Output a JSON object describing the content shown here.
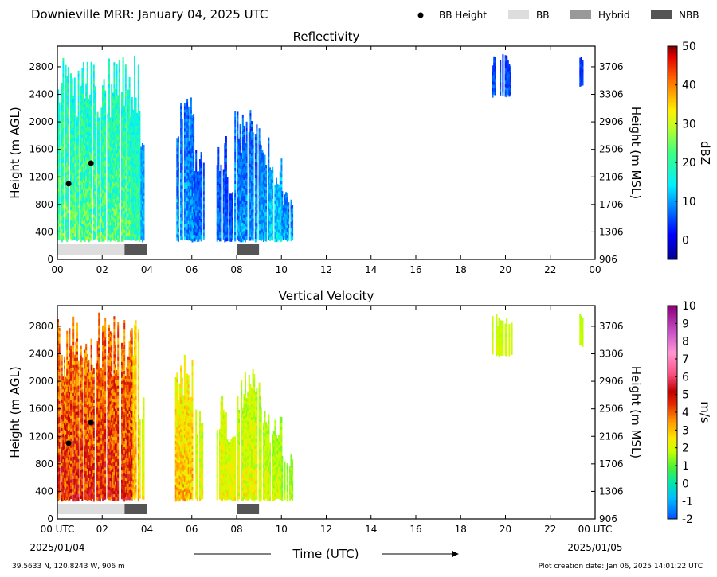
{
  "header": {
    "title": "Downieville MRR:  January 04, 2025 UTC",
    "legend": [
      {
        "label": "BB Height",
        "kind": "dot",
        "color": "#000000"
      },
      {
        "label": "BB",
        "kind": "swatch",
        "color": "#dddddd"
      },
      {
        "label": "Hybrid",
        "kind": "swatch",
        "color": "#999999"
      },
      {
        "label": "NBB",
        "kind": "swatch",
        "color": "#555555"
      }
    ]
  },
  "footer": {
    "location": "39.5633 N, 120.8243 W, 906 m",
    "creation": "Plot creation date: Jan 06, 2025 14:01:22 UTC",
    "time_label": "Time (UTC)",
    "start_date": "2025/01/04",
    "end_date": "2025/01/05"
  },
  "chart_data": [
    {
      "type": "heatmap",
      "title": "Reflectivity",
      "xlabel": "",
      "ylabel": "Height (m AGL)",
      "ylabel_right": "Height (m MSL)",
      "xlim": [
        0,
        24
      ],
      "ylim": [
        0,
        3100
      ],
      "x_ticks": [
        "00",
        "02",
        "04",
        "06",
        "08",
        "10",
        "12",
        "14",
        "16",
        "18",
        "20",
        "22",
        "00"
      ],
      "y_ticks": [
        0,
        400,
        800,
        1200,
        1600,
        2000,
        2400,
        2800
      ],
      "y_ticks_right": [
        "906",
        "1306",
        "1706",
        "2106",
        "2506",
        "2906",
        "3306",
        "3706"
      ],
      "colorbar": {
        "label": "dBZ",
        "min": -5,
        "max": 50,
        "ticks": [
          "0",
          "10",
          "20",
          "30",
          "40",
          "50"
        ],
        "tick_values": [
          0,
          10,
          20,
          30,
          40,
          50
        ],
        "scheme": "jet"
      },
      "bb_height_points": [
        {
          "x": 0.5,
          "y": 1100
        },
        {
          "x": 1.5,
          "y": 1400
        }
      ],
      "bb_type_segments": [
        {
          "type": "BB",
          "start": 0.0,
          "end": 3.0
        },
        {
          "type": "NBB",
          "start": 3.0,
          "end": 4.0
        },
        {
          "type": "NBB",
          "start": 8.0,
          "end": 9.0
        }
      ],
      "echo_regions": [
        {
          "start": 0.0,
          "end": 3.3,
          "top": 3000,
          "value_min": 8,
          "value_max": 30
        },
        {
          "start": 3.3,
          "end": 3.65,
          "top": 3000,
          "value_min": 10,
          "value_max": 25
        },
        {
          "start": 3.65,
          "end": 3.85,
          "top": 1800,
          "value_min": 5,
          "value_max": 15
        },
        {
          "start": 5.25,
          "end": 6.1,
          "top": 2400,
          "value_min": 0,
          "value_max": 15
        },
        {
          "start": 6.1,
          "end": 6.5,
          "top": 1600,
          "value_min": 0,
          "value_max": 12
        },
        {
          "start": 7.1,
          "end": 7.5,
          "top": 1800,
          "value_min": 0,
          "value_max": 12
        },
        {
          "start": 7.5,
          "end": 7.9,
          "top": 1200,
          "value_min": 0,
          "value_max": 10
        },
        {
          "start": 7.9,
          "end": 9.0,
          "top": 2200,
          "value_min": 0,
          "value_max": 15
        },
        {
          "start": 9.0,
          "end": 9.4,
          "top": 1800,
          "value_min": 2,
          "value_max": 15
        },
        {
          "start": 9.4,
          "end": 10.0,
          "top": 1500,
          "value_min": 5,
          "value_max": 18
        },
        {
          "start": 10.0,
          "end": 10.5,
          "top": 1000,
          "value_min": 2,
          "value_max": 15
        },
        {
          "start": 19.4,
          "end": 20.3,
          "top": 3000,
          "bottom": 2400,
          "value_min": 0,
          "value_max": 10
        },
        {
          "start": 23.3,
          "end": 23.45,
          "top": 3000,
          "bottom": 2550,
          "value_min": 0,
          "value_max": 8
        }
      ]
    },
    {
      "type": "heatmap",
      "title": "Vertical Velocity",
      "xlabel": "Time (UTC)",
      "ylabel": "Height (m AGL)",
      "ylabel_right": "Height (m MSL)",
      "xlim": [
        0,
        24
      ],
      "ylim": [
        0,
        3100
      ],
      "x_ticks": [
        "00 UTC",
        "02",
        "04",
        "06",
        "08",
        "10",
        "12",
        "14",
        "16",
        "18",
        "20",
        "22",
        "00 UTC"
      ],
      "y_ticks": [
        0,
        400,
        800,
        1200,
        1600,
        2000,
        2400,
        2800
      ],
      "y_ticks_right": [
        "906",
        "1306",
        "1706",
        "2106",
        "2506",
        "2906",
        "3306",
        "3706"
      ],
      "colorbar": {
        "label": "m/s",
        "min": -2,
        "max": 10,
        "ticks": [
          "-2",
          "-1",
          "0",
          "1",
          "2",
          "3",
          "4",
          "5",
          "6",
          "7",
          "8",
          "9",
          "10"
        ],
        "tick_values": [
          -2,
          -1,
          0,
          1,
          2,
          3,
          4,
          5,
          6,
          7,
          8,
          9,
          10
        ],
        "scheme": "velocity"
      },
      "bb_height_points": [
        {
          "x": 0.5,
          "y": 1100
        },
        {
          "x": 1.5,
          "y": 1400
        }
      ],
      "bb_type_segments": [
        {
          "type": "BB",
          "start": 0.0,
          "end": 3.0
        },
        {
          "type": "NBB",
          "start": 3.0,
          "end": 4.0
        },
        {
          "type": "NBB",
          "start": 8.0,
          "end": 9.0
        }
      ],
      "echo_regions": [
        {
          "start": 0.0,
          "end": 3.3,
          "top": 3000,
          "value_min": 2,
          "value_max": 6
        },
        {
          "start": 3.3,
          "end": 3.65,
          "top": 3000,
          "value_min": 1.5,
          "value_max": 4
        },
        {
          "start": 3.65,
          "end": 3.85,
          "top": 1800,
          "value_min": 1,
          "value_max": 3
        },
        {
          "start": 5.25,
          "end": 6.1,
          "top": 2400,
          "value_min": 1,
          "value_max": 4
        },
        {
          "start": 6.1,
          "end": 6.5,
          "top": 1600,
          "value_min": 1,
          "value_max": 3
        },
        {
          "start": 7.1,
          "end": 7.5,
          "top": 1800,
          "value_min": 1,
          "value_max": 3
        },
        {
          "start": 7.5,
          "end": 7.9,
          "top": 1200,
          "value_min": 1,
          "value_max": 3
        },
        {
          "start": 7.9,
          "end": 9.0,
          "top": 2200,
          "value_min": 0.8,
          "value_max": 3
        },
        {
          "start": 9.0,
          "end": 9.4,
          "top": 1800,
          "value_min": 1,
          "value_max": 2.5
        },
        {
          "start": 9.4,
          "end": 10.0,
          "top": 1500,
          "value_min": 0.8,
          "value_max": 2.5
        },
        {
          "start": 10.0,
          "end": 10.5,
          "top": 1000,
          "value_min": 0.8,
          "value_max": 2
        },
        {
          "start": 19.4,
          "end": 20.3,
          "top": 3000,
          "bottom": 2400,
          "value_min": 1.5,
          "value_max": 2.2
        },
        {
          "start": 23.3,
          "end": 23.45,
          "top": 3000,
          "bottom": 2550,
          "value_min": 1.5,
          "value_max": 2
        }
      ]
    }
  ]
}
